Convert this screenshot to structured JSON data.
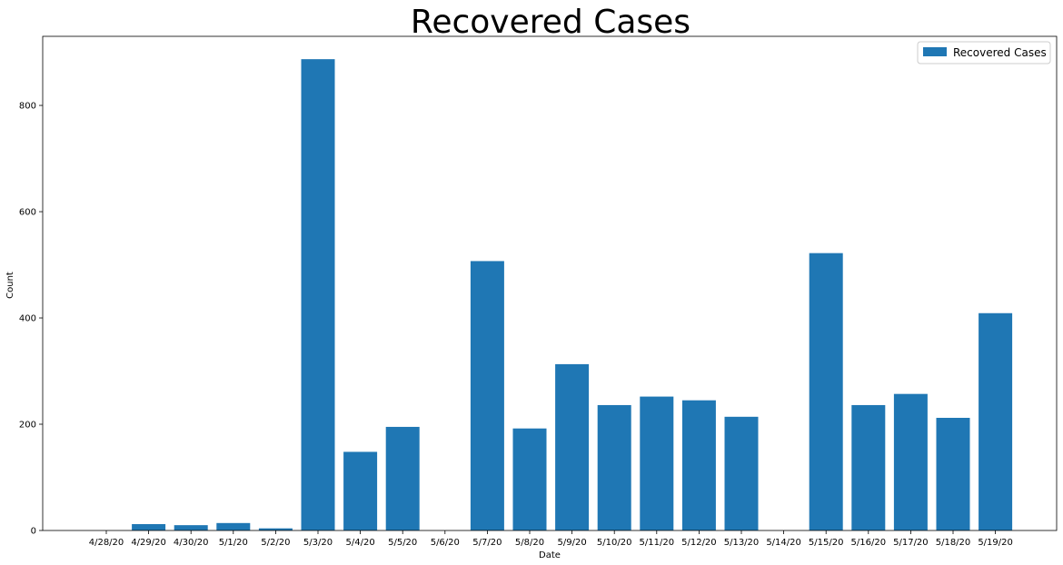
{
  "chart_data": {
    "type": "bar",
    "title": "Recovered Cases",
    "xlabel": "Date",
    "ylabel": "Count",
    "ylim": [
      0,
      930
    ],
    "yticks": [
      0,
      200,
      400,
      600,
      800
    ],
    "categories": [
      "4/28/20",
      "4/29/20",
      "4/30/20",
      "5/1/20",
      "5/2/20",
      "5/3/20",
      "5/4/20",
      "5/5/20",
      "5/6/20",
      "5/7/20",
      "5/8/20",
      "5/9/20",
      "5/10/20",
      "5/11/20",
      "5/12/20",
      "5/13/20",
      "5/14/20",
      "5/15/20",
      "5/16/20",
      "5/17/20",
      "5/18/20",
      "5/19/20"
    ],
    "series": [
      {
        "name": "Recovered Cases",
        "color": "#1f77b4",
        "values": [
          0,
          12,
          10,
          14,
          4,
          887,
          148,
          195,
          0,
          507,
          192,
          313,
          236,
          252,
          245,
          214,
          0,
          522,
          236,
          257,
          212,
          409
        ]
      }
    ],
    "legend": "top-right",
    "grid": false
  }
}
